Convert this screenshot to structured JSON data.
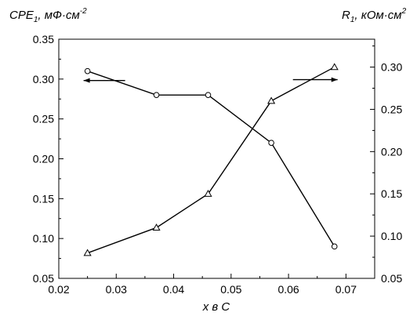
{
  "chart_data": {
    "type": "line",
    "x": [
      0.025,
      0.037,
      0.046,
      0.057,
      0.068
    ],
    "xlim": [
      0.02,
      0.075
    ],
    "xticks": [
      "0.02",
      "0.03",
      "0.04",
      "0.05",
      "0.06",
      "0.07"
    ],
    "xlabel": "x в C",
    "y_left": {
      "label_main": "CPE",
      "label_sub": "1",
      "label_unit": ", мФ·см",
      "label_sup": "-2",
      "lim": [
        0.05,
        0.35
      ],
      "ticks": [
        "0.05",
        "0.10",
        "0.15",
        "0.20",
        "0.25",
        "0.30",
        "0.35"
      ]
    },
    "y_right": {
      "label_main": "R",
      "label_sub": "1",
      "label_unit": ", кОм·см",
      "label_sup": "2",
      "lim": [
        0.05,
        0.333
      ],
      "ticks": [
        "0.05",
        "0.10",
        "0.15",
        "0.20",
        "0.25",
        "0.30"
      ]
    },
    "series": [
      {
        "axis": "left",
        "marker": "circle",
        "values": [
          0.31,
          0.28,
          0.28,
          0.22,
          0.09
        ]
      },
      {
        "axis": "right",
        "marker": "triangle",
        "values": [
          0.08,
          0.11,
          0.15,
          0.26,
          0.3
        ]
      }
    ],
    "arrows": [
      {
        "series": 0,
        "direction": "left"
      },
      {
        "series": 1,
        "direction": "right"
      }
    ],
    "grid": false,
    "line_color": "#000000"
  }
}
